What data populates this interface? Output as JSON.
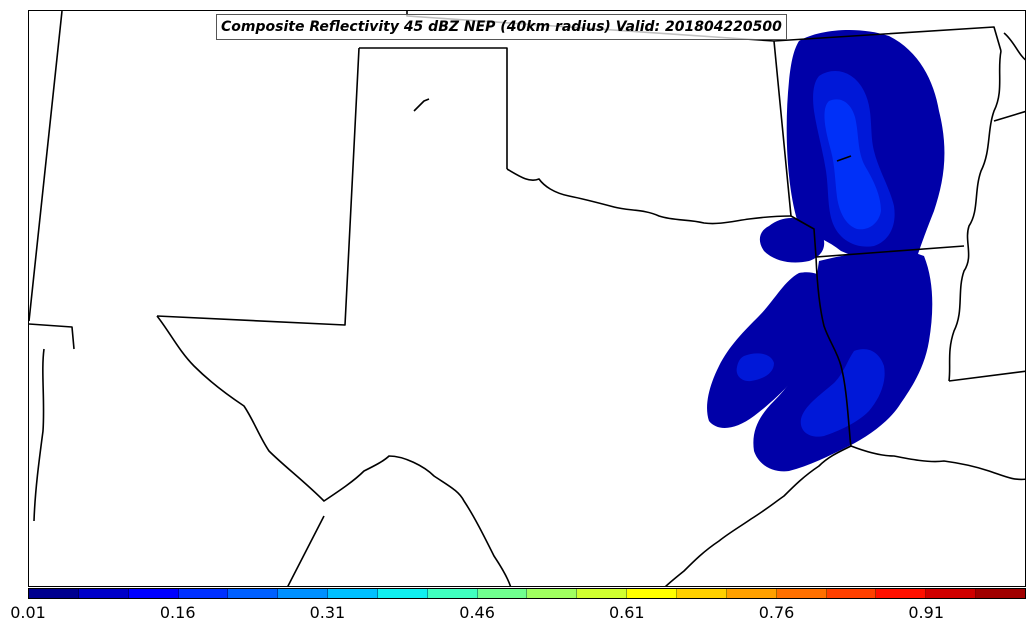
{
  "title": "Composite Reflectivity 45 dBZ NEP (40km radius) Valid: 201804220500",
  "colorbar": {
    "colors": [
      "#00008f",
      "#0000c8",
      "#0000ff",
      "#0030ff",
      "#0060ff",
      "#0090ff",
      "#00c0ff",
      "#10f0f0",
      "#40ffbf",
      "#70ff8f",
      "#a0ff60",
      "#d0ff30",
      "#ffff00",
      "#ffd000",
      "#ffa000",
      "#ff7000",
      "#ff4000",
      "#ff1000",
      "#d00000",
      "#a00000"
    ],
    "tick_labels": [
      "0.01",
      "0.16",
      "0.31",
      "0.46",
      "0.61",
      "0.76",
      "0.91"
    ],
    "tick_values": [
      0.01,
      0.16,
      0.31,
      0.46,
      0.61,
      0.76,
      0.91
    ],
    "range": [
      0.01,
      1.01
    ]
  },
  "probability_fill_colors": {
    "low": "#0000a8",
    "mid": "#0018d8",
    "high": "#0030f8"
  },
  "outline_color": "#000000"
}
